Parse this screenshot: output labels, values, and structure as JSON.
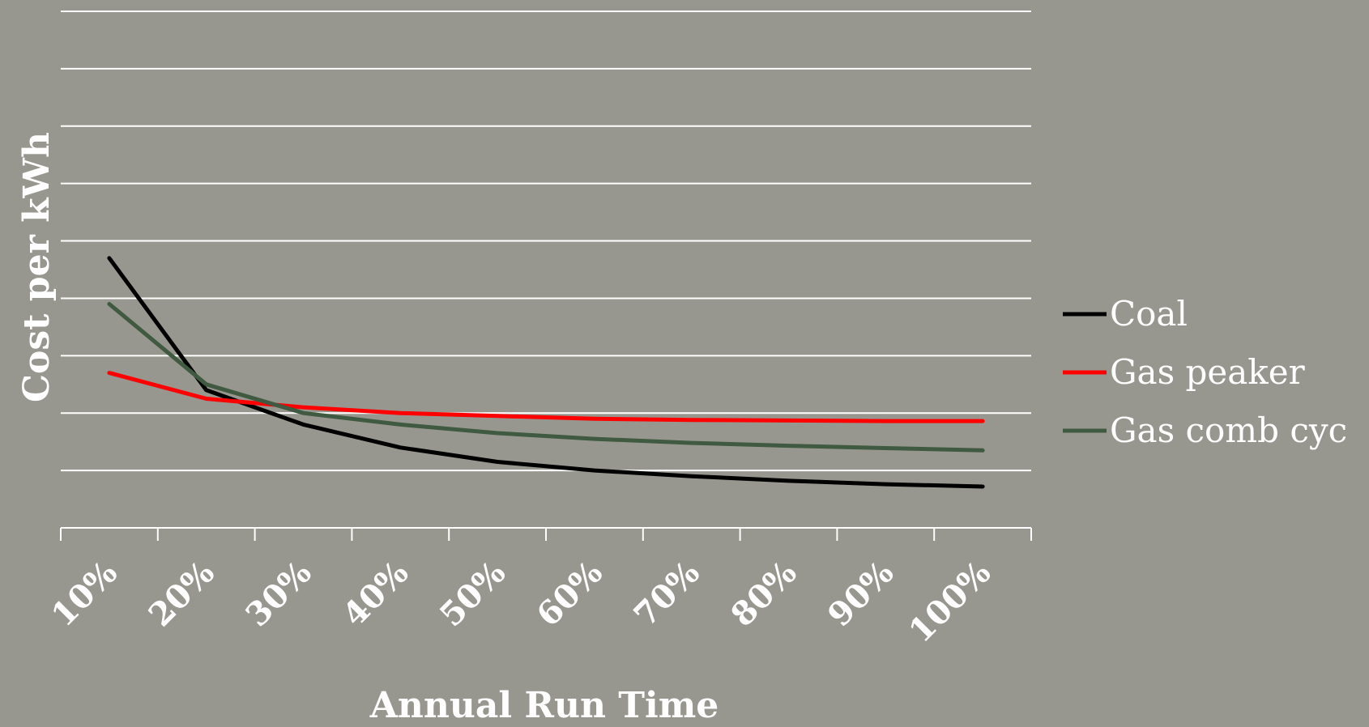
{
  "chart_data": {
    "type": "line",
    "title": "",
    "xlabel": "Annual Run Time",
    "ylabel": "Cost per kWh",
    "categories": [
      "10%",
      "20%",
      "30%",
      "40%",
      "50%",
      "60%",
      "70%",
      "80%",
      "90%",
      "100%"
    ],
    "ylim": [
      0,
      9
    ],
    "y_gridlines": 9,
    "grid": true,
    "legend_position": "right",
    "series": [
      {
        "name": "Coal",
        "color": "#000000",
        "values": [
          4.7,
          2.4,
          1.8,
          1.4,
          1.15,
          1.0,
          0.9,
          0.82,
          0.76,
          0.72
        ]
      },
      {
        "name": "Gas peaker",
        "color": "#ff0000",
        "values": [
          2.7,
          2.25,
          2.1,
          2.0,
          1.95,
          1.9,
          1.88,
          1.87,
          1.86,
          1.86
        ]
      },
      {
        "name": "Gas comb cyc",
        "color": "#3f5a40",
        "values": [
          3.9,
          2.5,
          2.0,
          1.8,
          1.65,
          1.55,
          1.48,
          1.43,
          1.39,
          1.35
        ]
      }
    ]
  }
}
